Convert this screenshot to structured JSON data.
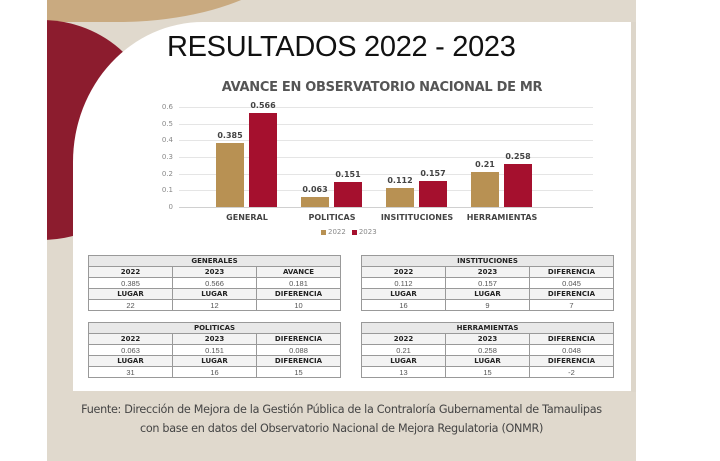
{
  "title": "RESULTADOS 2022 - 2023",
  "chart_data": {
    "type": "bar",
    "title": "AVANCE EN OBSERVATORIO NACIONAL DE MR",
    "categories": [
      "GENERAL",
      "POLITICAS",
      "INSITITUCIONES",
      "HERRAMIENTAS"
    ],
    "series": [
      {
        "name": "2022",
        "values": [
          0.385,
          0.063,
          0.112,
          0.21
        ],
        "color": "#b89153"
      },
      {
        "name": "2023",
        "values": [
          0.566,
          0.151,
          0.157,
          0.258
        ],
        "color": "#a5102e"
      }
    ],
    "xlabel": "",
    "ylabel": "",
    "ylim": [
      0,
      0.6
    ],
    "yticks": [
      "0.6",
      "0.5",
      "0.4",
      "0.3",
      "0.2",
      "0.1",
      "0"
    ],
    "grid": true,
    "legend_position": "bottom"
  },
  "chart_labels": {
    "bars": [
      {
        "v2022": "0.385",
        "v2023": "0.566"
      },
      {
        "v2022": "0.063",
        "v2023": "0.151"
      },
      {
        "v2022": "0.112",
        "v2023": "0.157"
      },
      {
        "v2022": "0.21",
        "v2023": "0.258"
      }
    ],
    "legend": [
      "2022",
      "2023"
    ]
  },
  "tables": {
    "generales": {
      "title": "GENERALES",
      "header1": [
        "2022",
        "2023",
        "AVANCE"
      ],
      "values1": [
        "0.385",
        "0.566",
        "0.181"
      ],
      "header2": [
        "LUGAR",
        "LUGAR",
        "DIFERENCIA"
      ],
      "values2": [
        "22",
        "12",
        "10"
      ]
    },
    "instituciones": {
      "title": "INSTITUCIONES",
      "header1": [
        "2022",
        "2023",
        "DIFERENCIA"
      ],
      "values1": [
        "0.112",
        "0.157",
        "0.045"
      ],
      "header2": [
        "LUGAR",
        "LUGAR",
        "DIFERENCIA"
      ],
      "values2": [
        "16",
        "9",
        "7"
      ]
    },
    "politicas": {
      "title": "POLITICAS",
      "header1": [
        "2022",
        "2023",
        "DIFERENCIA"
      ],
      "values1": [
        "0.063",
        "0.151",
        "0.088"
      ],
      "header2": [
        "LUGAR",
        "LUGAR",
        "DIFERENCIA"
      ],
      "values2": [
        "31",
        "16",
        "15"
      ]
    },
    "herramientas": {
      "title": "HERRAMIENTAS",
      "header1": [
        "2022",
        "2023",
        "DIFERENCIA"
      ],
      "values1": [
        "0.21",
        "0.258",
        "0.048"
      ],
      "header2": [
        "LUGAR",
        "LUGAR",
        "DIFERENCIA"
      ],
      "values2": [
        "13",
        "15",
        "-2"
      ]
    }
  },
  "source": {
    "line1": "Fuente: Dirección de Mejora de la Gestión Pública de la Contraloría Gubernamental de Tamaulipas",
    "line2": "con base en datos del Observatorio Nacional de Mejora Regulatoria (ONMR)"
  }
}
